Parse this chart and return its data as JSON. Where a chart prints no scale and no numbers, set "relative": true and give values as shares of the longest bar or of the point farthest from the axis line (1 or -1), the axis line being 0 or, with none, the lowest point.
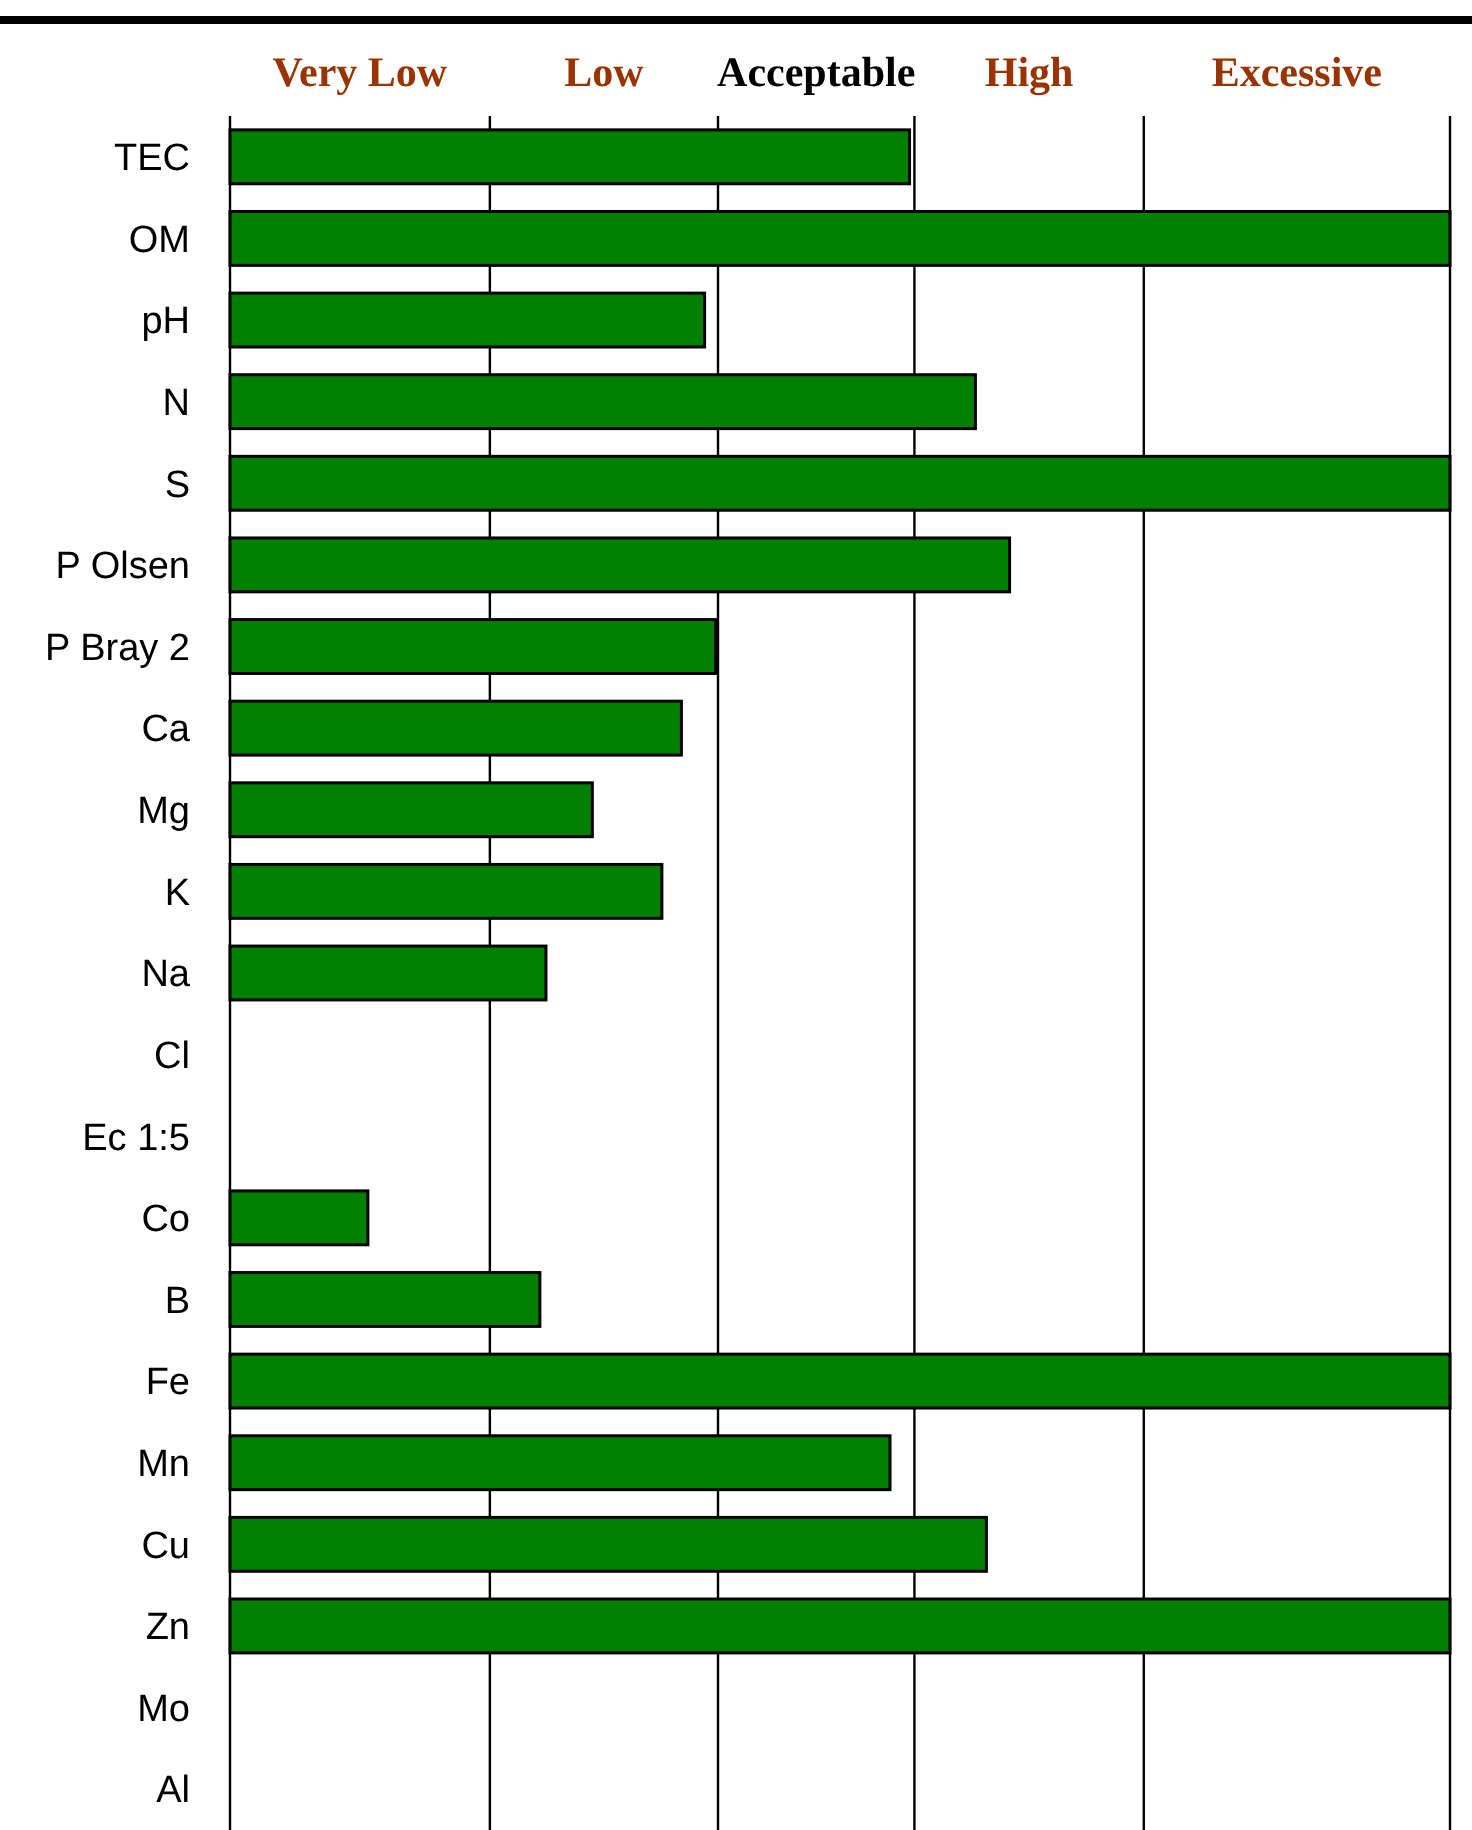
{
  "chart_data": {
    "type": "bar",
    "orientation": "horizontal",
    "relative": true,
    "categories": [
      "TEC",
      "OM",
      "pH",
      "N",
      "S",
      "P Olsen",
      "P Bray 2",
      "Ca",
      "Mg",
      "K",
      "Na",
      "Cl",
      "Ec 1:5",
      "Co",
      "B",
      "Fe",
      "Mn",
      "Cu",
      "Zn",
      "Mo",
      "Al"
    ],
    "values": [
      0.557,
      1,
      0.389,
      0.611,
      1,
      0.639,
      0.398,
      0.37,
      0.297,
      0.354,
      0.259,
      null,
      null,
      0.113,
      0.254,
      1,
      0.541,
      0.62,
      1,
      null,
      null
    ],
    "color": "#008000",
    "ref_lines": [
      {
        "axis": "x",
        "value": 0.213,
        "color": "#000000"
      },
      {
        "axis": "x",
        "value": 0.4,
        "color": "#000000"
      },
      {
        "axis": "x",
        "value": 0.561,
        "color": "#000000"
      },
      {
        "axis": "x",
        "value": 0.749,
        "color": "#000000"
      },
      {
        "axis": "x",
        "value": 1,
        "color": "#000000"
      }
    ],
    "annotations": [
      "Very Low",
      "Low",
      "Acceptable",
      "High",
      "Excessive"
    ]
  }
}
